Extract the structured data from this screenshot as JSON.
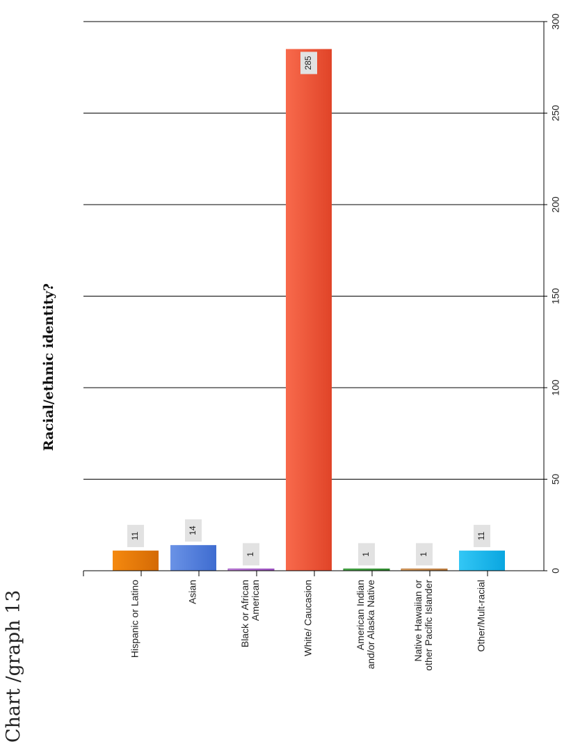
{
  "page": {
    "label": "Chart /graph 13"
  },
  "chart_data": {
    "type": "bar",
    "title": "Racial/ethnic identity?",
    "xlabel": "",
    "ylabel": "",
    "ylim": [
      0,
      300
    ],
    "yticks": [
      0,
      50,
      100,
      150,
      200,
      250,
      300
    ],
    "grid": true,
    "categories": [
      [
        "Hispanic or Latino"
      ],
      [
        "Asian"
      ],
      [
        "Black or African",
        "American"
      ],
      [
        "White/ Caucasion"
      ],
      [
        "American Indian",
        "and/or Alaska Native"
      ],
      [
        "Native Hawaiian or",
        "other Pacific Islander"
      ],
      [
        "Other/Mult-racial"
      ]
    ],
    "values": [
      11,
      14,
      1,
      285,
      1,
      1,
      11
    ],
    "colors": [
      [
        "#f5890f",
        "#d46a05"
      ],
      [
        "#6a92e6",
        "#3e6cd0"
      ],
      [
        "#c98de0",
        "#9a4fbf"
      ],
      [
        "#f86a4c",
        "#e04428"
      ],
      [
        "#4fb34f",
        "#2e8a2e"
      ],
      [
        "#e0a86a",
        "#b8773a"
      ],
      [
        "#33c7f5",
        "#0aa6e0"
      ]
    ]
  }
}
